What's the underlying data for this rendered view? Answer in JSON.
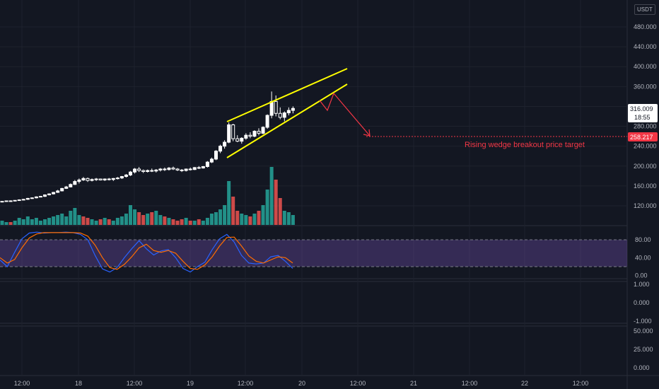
{
  "currency_label": "USDT",
  "colors": {
    "background": "#131722",
    "grid": "#1e222d",
    "bull": "#ffffff",
    "bear": "#ffffff",
    "volume_up": "#26a69a",
    "volume_down": "#ef5350",
    "wedge": "#ffff00",
    "target": "#f23645",
    "stoch_k": "#2962ff",
    "stoch_d": "#ff6d00",
    "stoch_band": "#7e57c2"
  },
  "price_badges": {
    "last_price": "316.009",
    "countdown": "18:55",
    "target_price": "258.217"
  },
  "annotation": "Rising wedge breakout price target",
  "chart_data": [
    {
      "type": "candlestick",
      "pane": "price",
      "title": "",
      "ylim": [
        90,
        500
      ],
      "y_ticks": [
        "480.000",
        "440.000",
        "400.000",
        "360.000",
        "320.000",
        "280.000",
        "240.000",
        "200.000",
        "160.000",
        "120.000"
      ],
      "x_ticks": [
        "12:00",
        "18",
        "12:00",
        "19",
        "12:00",
        "20",
        "12:00",
        "21",
        "12:00",
        "22",
        "12:00"
      ],
      "candles": [
        [
          128,
          129,
          127,
          129
        ],
        [
          129,
          130,
          128,
          130
        ],
        [
          130,
          131,
          129,
          130
        ],
        [
          130,
          131,
          129,
          131
        ],
        [
          131,
          133,
          130,
          132
        ],
        [
          132,
          134,
          131,
          133
        ],
        [
          133,
          136,
          132,
          135
        ],
        [
          135,
          137,
          134,
          136
        ],
        [
          136,
          139,
          135,
          138
        ],
        [
          138,
          140,
          137,
          139
        ],
        [
          139,
          143,
          138,
          142
        ],
        [
          142,
          145,
          141,
          144
        ],
        [
          144,
          148,
          143,
          147
        ],
        [
          147,
          152,
          146,
          150
        ],
        [
          150,
          156,
          149,
          155
        ],
        [
          155,
          160,
          154,
          158
        ],
        [
          158,
          165,
          157,
          163
        ],
        [
          163,
          172,
          162,
          169
        ],
        [
          169,
          175,
          165,
          172
        ],
        [
          172,
          178,
          170,
          175
        ],
        [
          175,
          177,
          168,
          171
        ],
        [
          171,
          175,
          169,
          173
        ],
        [
          173,
          176,
          170,
          174
        ],
        [
          174,
          175,
          171,
          172
        ],
        [
          172,
          175,
          170,
          174
        ],
        [
          174,
          176,
          171,
          173
        ],
        [
          173,
          176,
          170,
          175
        ],
        [
          175,
          178,
          173,
          176
        ],
        [
          176,
          180,
          174,
          179
        ],
        [
          179,
          184,
          177,
          182
        ],
        [
          182,
          190,
          180,
          188
        ],
        [
          188,
          196,
          185,
          194
        ],
        [
          194,
          198,
          188,
          191
        ],
        [
          191,
          193,
          186,
          189
        ],
        [
          189,
          193,
          187,
          191
        ],
        [
          191,
          195,
          188,
          190
        ],
        [
          190,
          194,
          187,
          192
        ],
        [
          192,
          196,
          189,
          194
        ],
        [
          194,
          197,
          190,
          193
        ],
        [
          193,
          198,
          191,
          196
        ],
        [
          196,
          199,
          192,
          194
        ],
        [
          194,
          196,
          190,
          192
        ],
        [
          192,
          194,
          188,
          191
        ],
        [
          191,
          195,
          189,
          194
        ],
        [
          194,
          197,
          191,
          193
        ],
        [
          193,
          198,
          192,
          197
        ],
        [
          197,
          200,
          194,
          196
        ],
        [
          196,
          200,
          195,
          199
        ],
        [
          199,
          210,
          197,
          208
        ],
        [
          208,
          217,
          206,
          214
        ],
        [
          214,
          232,
          212,
          230
        ],
        [
          230,
          243,
          226,
          240
        ],
        [
          240,
          252,
          235,
          248
        ],
        [
          248,
          288,
          246,
          283
        ],
        [
          283,
          285,
          250,
          255
        ],
        [
          255,
          262,
          248,
          250
        ],
        [
          250,
          258,
          245,
          256
        ],
        [
          256,
          266,
          253,
          262
        ],
        [
          262,
          268,
          256,
          260
        ],
        [
          260,
          272,
          258,
          270
        ],
        [
          270,
          276,
          262,
          266
        ],
        [
          266,
          280,
          264,
          278
        ],
        [
          278,
          304,
          275,
          302
        ],
        [
          302,
          350,
          296,
          330
        ],
        [
          330,
          342,
          300,
          306
        ],
        [
          306,
          318,
          294,
          298
        ],
        [
          298,
          310,
          290,
          307
        ],
        [
          307,
          318,
          302,
          312
        ],
        [
          312,
          320,
          306,
          316
        ]
      ]
    },
    {
      "type": "bar",
      "pane": "volume",
      "title": "",
      "values": [
        3,
        2,
        2,
        3,
        5,
        4,
        6,
        4,
        5,
        3,
        4,
        5,
        6,
        7,
        8,
        6,
        10,
        12,
        7,
        6,
        5,
        4,
        3,
        4,
        5,
        4,
        3,
        5,
        6,
        8,
        14,
        11,
        9,
        7,
        8,
        9,
        10,
        7,
        6,
        5,
        4,
        3,
        4,
        5,
        3,
        3,
        4,
        3,
        5,
        8,
        9,
        11,
        14,
        31,
        20,
        10,
        8,
        7,
        6,
        8,
        10,
        14,
        25,
        41,
        32,
        19,
        10,
        9,
        7
      ],
      "directions": [
        1,
        1,
        0,
        1,
        1,
        1,
        1,
        1,
        1,
        1,
        1,
        1,
        1,
        1,
        1,
        1,
        1,
        1,
        1,
        0,
        0,
        1,
        1,
        0,
        1,
        0,
        1,
        1,
        1,
        1,
        1,
        1,
        0,
        0,
        1,
        0,
        1,
        1,
        0,
        1,
        0,
        0,
        0,
        1,
        0,
        1,
        0,
        1,
        1,
        1,
        1,
        1,
        1,
        1,
        0,
        0,
        1,
        1,
        0,
        1,
        0,
        1,
        1,
        1,
        0,
        0,
        1,
        1,
        1
      ]
    },
    {
      "type": "line",
      "pane": "stochastic",
      "title": "",
      "ylim": [
        -12,
        110
      ],
      "y_ticks": [
        "80.00",
        "40.00",
        "0.00"
      ],
      "band": [
        20,
        80
      ],
      "series": [
        {
          "values": [
            35,
            20,
            52,
            82,
            95,
            97,
            95,
            96,
            96,
            97,
            96,
            92,
            80,
            45,
            15,
            8,
            18,
            40,
            60,
            78,
            60,
            46,
            55,
            58,
            40,
            16,
            8,
            20,
            30,
            58,
            82,
            92,
            75,
            45,
            28,
            26,
            28,
            42,
            45,
            32,
            16
          ]
        },
        {
          "values": [
            40,
            28,
            36,
            62,
            84,
            93,
            96,
            96,
            96,
            96,
            96,
            95,
            88,
            68,
            40,
            18,
            14,
            25,
            42,
            62,
            70,
            56,
            52,
            56,
            50,
            32,
            16,
            14,
            24,
            42,
            66,
            85,
            86,
            66,
            44,
            32,
            28,
            35,
            42,
            40,
            28
          ]
        }
      ]
    },
    {
      "type": "line",
      "pane": "oscillator_1",
      "title": "",
      "y_ticks": [
        "1.000",
        "0.000",
        "-1.000"
      ],
      "series": []
    },
    {
      "type": "line",
      "pane": "oscillator_2",
      "title": "",
      "y_ticks": [
        "50.000",
        "25.000",
        "0.000"
      ],
      "series": []
    }
  ]
}
